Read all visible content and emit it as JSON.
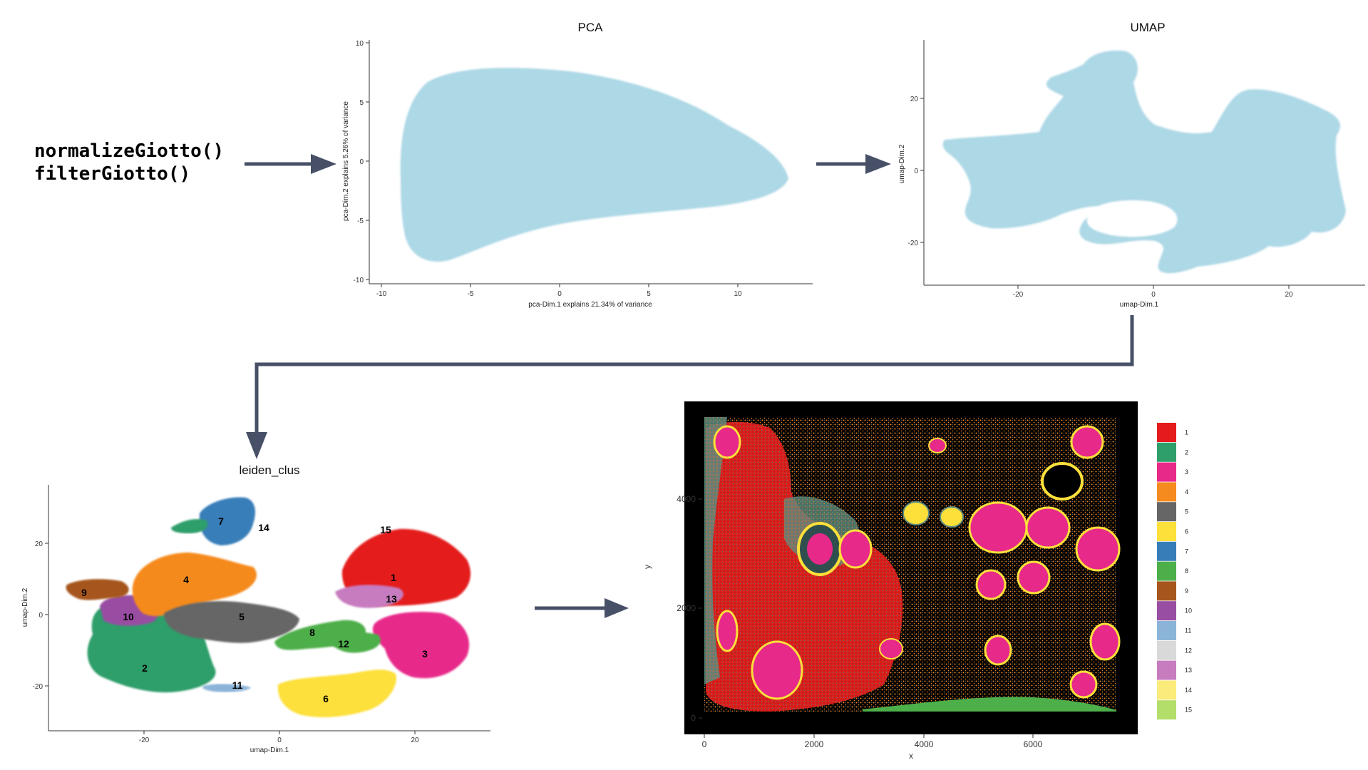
{
  "code": {
    "line1": "normalizeGiotto()",
    "line2": "filterGiotto()"
  },
  "colors": {
    "arrow": "#475066",
    "pointcloud": "#add8e6",
    "axis": "#333333"
  },
  "pca": {
    "title": "PCA",
    "xlabel": "pca-Dim.1 explains 21.34% of variance",
    "ylabel": "pca-Dim.2 explains 5.26% of variance",
    "xticks": [
      "-10",
      "-5",
      "0",
      "5",
      "10"
    ],
    "yticks": [
      "10",
      "5",
      "0",
      "-5",
      "-10"
    ]
  },
  "umap": {
    "title": "UMAP",
    "xlabel": "umap-Dim.1",
    "ylabel": "umap-Dim.2",
    "xticks": [
      "-20",
      "0",
      "20"
    ],
    "yticks": [
      "20",
      "0",
      "-20"
    ]
  },
  "leiden": {
    "title": "leiden_clus",
    "xlabel": "umap-Dim.1",
    "ylabel": "umap-Dim.2",
    "xticks": [
      "-20",
      "0",
      "20"
    ],
    "yticks": [
      "20",
      "0",
      "-20"
    ],
    "cluster_labels": [
      "1",
      "2",
      "3",
      "4",
      "5",
      "6",
      "7",
      "8",
      "9",
      "10",
      "11",
      "12",
      "13",
      "14",
      "15"
    ]
  },
  "spatial": {
    "xlabel": "x",
    "ylabel": "y",
    "xticks": [
      "0",
      "2000",
      "4000",
      "6000"
    ],
    "yticks": [
      "4000",
      "2000",
      "0"
    ]
  },
  "legend": [
    {
      "label": "1",
      "color": "#e41a1c"
    },
    {
      "label": "2",
      "color": "#2e9e6b"
    },
    {
      "label": "3",
      "color": "#e7298a"
    },
    {
      "label": "4",
      "color": "#f58a1f"
    },
    {
      "label": "5",
      "color": "#666666"
    },
    {
      "label": "6",
      "color": "#fde03a"
    },
    {
      "label": "7",
      "color": "#377eb8"
    },
    {
      "label": "8",
      "color": "#4daf4a"
    },
    {
      "label": "9",
      "color": "#a6561d"
    },
    {
      "label": "10",
      "color": "#984ea3"
    },
    {
      "label": "11",
      "color": "#8cb4d8"
    },
    {
      "label": "12",
      "color": "#d9d9d9"
    },
    {
      "label": "13",
      "color": "#c77cbf"
    },
    {
      "label": "14",
      "color": "#fbeb7a"
    },
    {
      "label": "15",
      "color": "#b3de69"
    }
  ]
}
